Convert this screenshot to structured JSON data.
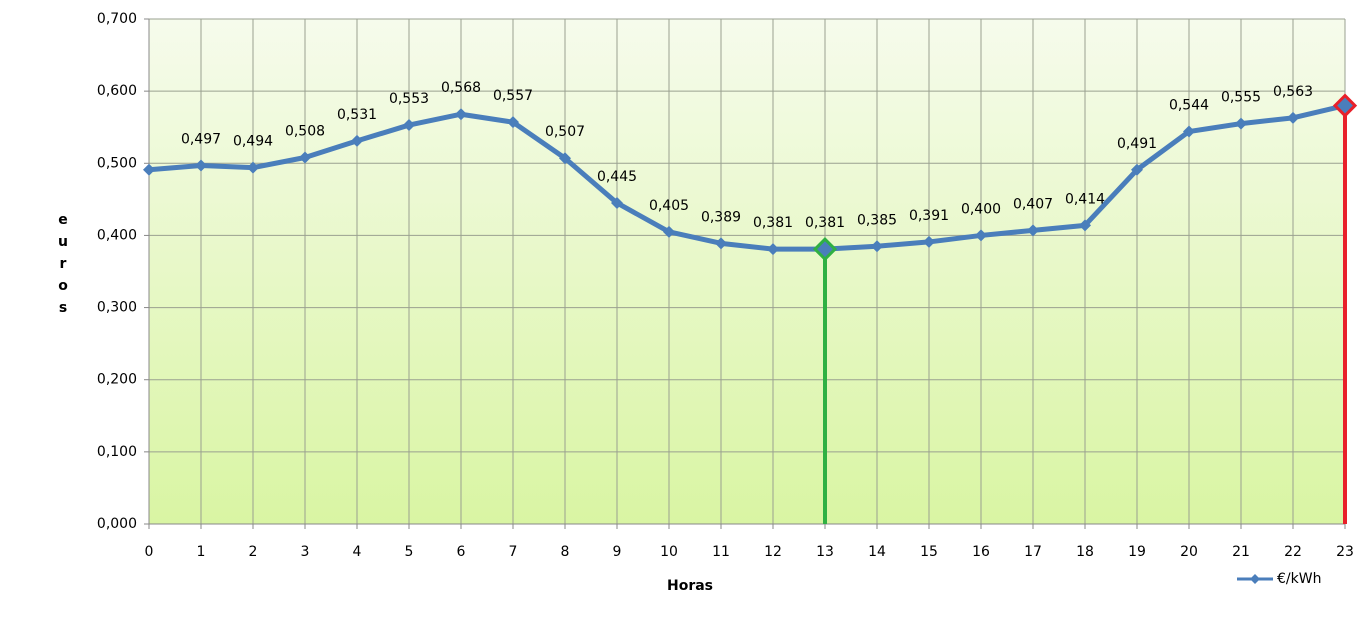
{
  "chart_data": {
    "type": "line",
    "x_label": "Horas",
    "y_label": "euros",
    "x": [
      0,
      1,
      2,
      3,
      4,
      5,
      6,
      7,
      8,
      9,
      10,
      11,
      12,
      13,
      14,
      15,
      16,
      17,
      18,
      19,
      20,
      21,
      22,
      23
    ],
    "series": [
      {
        "name": "€/kWh",
        "color": "#4a7ebb",
        "values": [
          0.491,
          0.497,
          0.494,
          0.508,
          0.531,
          0.553,
          0.568,
          0.557,
          0.507,
          0.445,
          0.405,
          0.389,
          0.381,
          0.381,
          0.385,
          0.391,
          0.4,
          0.407,
          0.414,
          0.491,
          0.544,
          0.555,
          0.563,
          0.58
        ],
        "value_labels": [
          null,
          "0,497",
          "0,494",
          "0,508",
          "0,531",
          "0,553",
          "0,568",
          "0,557",
          "0,507",
          "0,445",
          "0,405",
          "0,389",
          "0,381",
          "0,381",
          "0,385",
          "0,391",
          "0,400",
          "0,407",
          "0,414",
          "0,491",
          "0,544",
          "0,555",
          "0,563",
          null
        ]
      }
    ],
    "xlim": [
      0,
      23
    ],
    "xticks": [
      0,
      1,
      2,
      3,
      4,
      5,
      6,
      7,
      8,
      9,
      10,
      11,
      12,
      13,
      14,
      15,
      16,
      17,
      18,
      19,
      20,
      21,
      22,
      23
    ],
    "ylim": [
      0,
      0.7
    ],
    "yticks": [
      {
        "value": 0,
        "label": "0,000"
      },
      {
        "value": 0.1,
        "label": "0,100"
      },
      {
        "value": 0.2,
        "label": "0,200"
      },
      {
        "value": 0.3,
        "label": "0,300"
      },
      {
        "value": 0.4,
        "label": "0,400"
      },
      {
        "value": 0.5,
        "label": "0,500"
      },
      {
        "value": 0.6,
        "label": "0,600"
      },
      {
        "value": 0.7,
        "label": "0,700"
      }
    ],
    "grid": true,
    "legend": "bottom-right",
    "highlights": [
      {
        "index": 13,
        "color": "#2fb043"
      },
      {
        "index": 23,
        "color": "#e8202a"
      }
    ]
  }
}
